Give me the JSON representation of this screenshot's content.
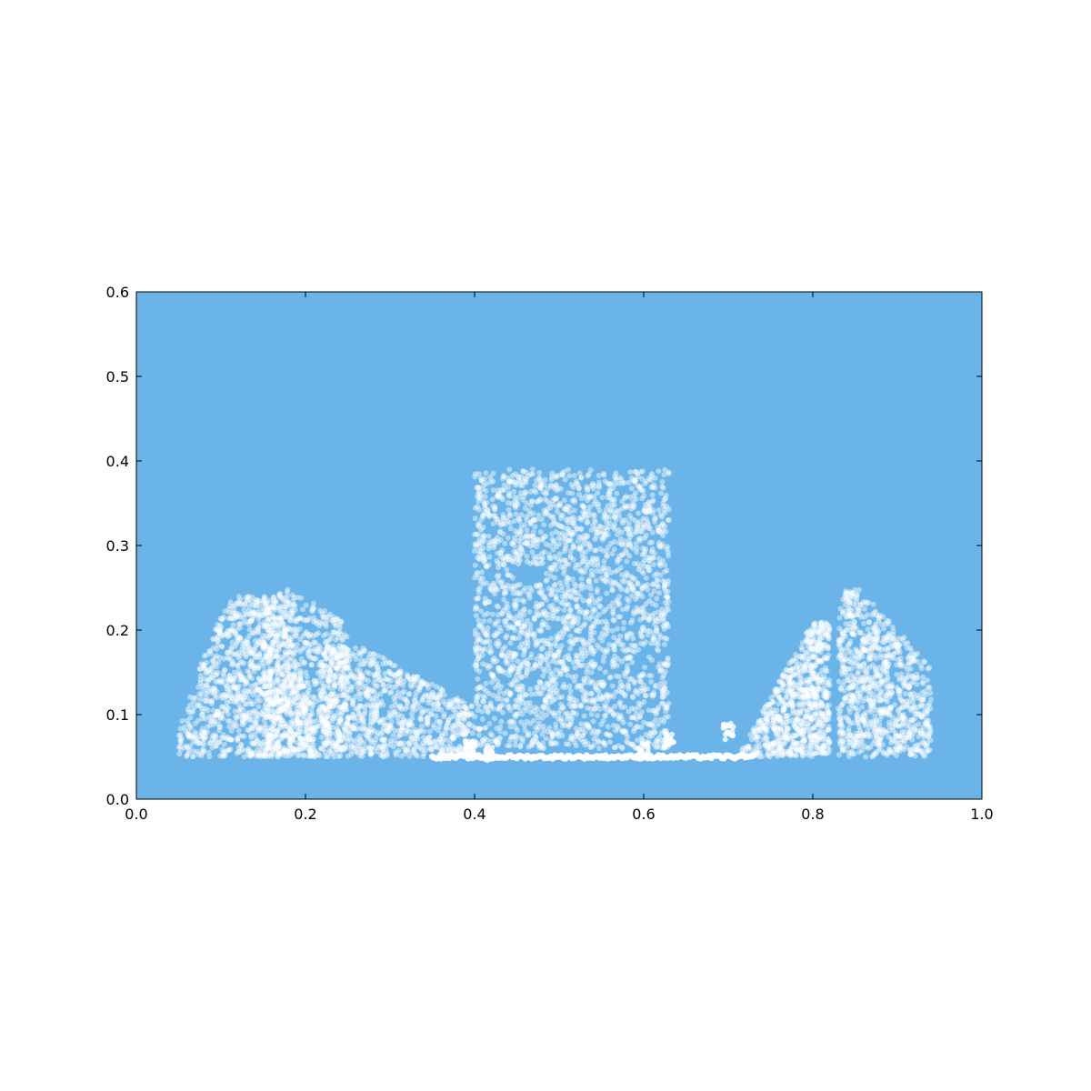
{
  "chart_data": {
    "type": "scatter",
    "title": "",
    "xlabel": "",
    "ylabel": "",
    "xlim": [
      0.0,
      1.0
    ],
    "ylim": [
      0.0,
      0.6
    ],
    "x_ticks": [
      "0.0",
      "0.2",
      "0.4",
      "0.6",
      "0.8",
      "1.0"
    ],
    "y_ticks": [
      "0.0",
      "0.1",
      "0.2",
      "0.3",
      "0.4",
      "0.5",
      "0.6"
    ],
    "grid": false,
    "legend": false,
    "background_color": "#6ab4e9",
    "point_color": "#ffffff",
    "point_alpha": 0.45,
    "series": [
      {
        "note_regions": "dense white particle cloud",
        "clusters": [
          {
            "x": [
              0.05,
              0.21
            ],
            "y": [
              0.05,
              0.24
            ]
          },
          {
            "x": [
              0.15,
              0.25
            ],
            "y": [
              0.05,
              0.25
            ]
          },
          {
            "x": [
              0.22,
              0.4
            ],
            "y": [
              0.05,
              0.18
            ]
          },
          {
            "x": [
              0.4,
              0.63
            ],
            "y": [
              0.06,
              0.39
            ]
          },
          {
            "x": [
              0.71,
              0.82
            ],
            "y": [
              0.05,
              0.21
            ]
          },
          {
            "x": [
              0.83,
              0.94
            ],
            "y": [
              0.05,
              0.25
            ]
          }
        ],
        "floor_line": {
          "x": [
            0.35,
            0.73
          ],
          "y": 0.05
        }
      }
    ]
  }
}
